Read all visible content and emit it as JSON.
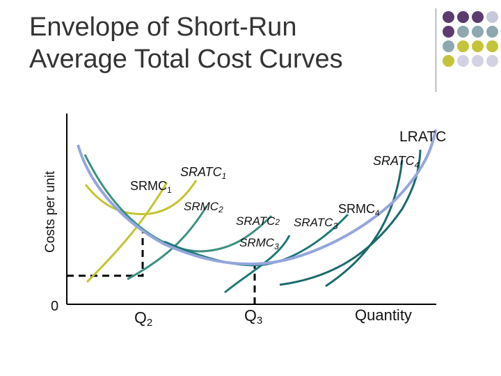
{
  "title": {
    "line1": "Envelope of Short-Run",
    "line2": "Average Total Cost Curves"
  },
  "decoration": {
    "dot_colors": [
      [
        "#5c3b6e",
        "#5c3b6e",
        "#5c3b6e",
        "#c8c8dc"
      ],
      [
        "#5c3b6e",
        "#8ea8b0",
        "#8ea8b0",
        "#8ea8b0"
      ],
      [
        "#8ea8b0",
        "#c4c43a",
        "#c4c43a",
        "#c4c43a"
      ],
      [
        "#c4c43a",
        "#d2d2e2",
        "#d2d2e2",
        "#d2d2e2"
      ]
    ]
  },
  "axes": {
    "y_label": "Costs per unit",
    "origin_label": "0",
    "x_label": "Quantity"
  },
  "ticks": {
    "q2": {
      "letter": "Q",
      "sub": "2"
    },
    "q3": {
      "letter": "Q",
      "sub": "3"
    }
  },
  "labels": {
    "lratc": "LRATC",
    "sratc1": {
      "main": "SRATC",
      "sub": "1"
    },
    "srmc1": {
      "main": "SRMC",
      "sub": "1"
    },
    "srmc2": {
      "main": "SRMC",
      "sub": "2"
    },
    "sratc2": {
      "main": "SRATC",
      "sub": "2"
    },
    "sratc3": {
      "main": "SRATC",
      "sub": "3"
    },
    "srmc3": {
      "main": "SRMC",
      "sub": "3"
    },
    "sratc4": {
      "main": "SRATC",
      "sub": "4"
    },
    "srmc4": {
      "main": "SRMC",
      "sub": "4"
    }
  },
  "colors": {
    "lratc": "#94a6dc",
    "plant1": "#c4c430",
    "plant2": "#3a9080",
    "plant3": "#1c7878",
    "plant4": "#1a6a6a"
  }
}
